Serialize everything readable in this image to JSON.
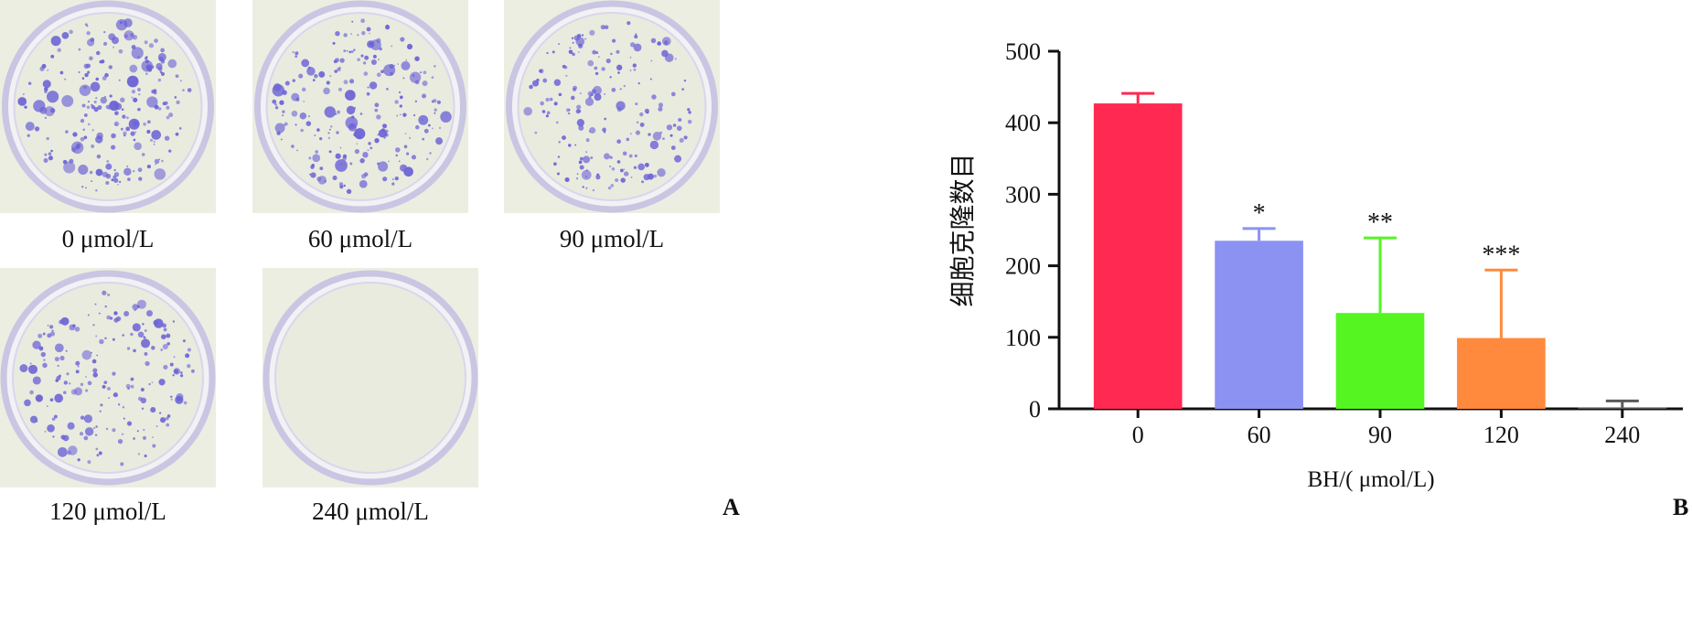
{
  "panel_a": {
    "letter": "A",
    "plates": [
      {
        "label": "0 μmol/L",
        "colony_density": "high"
      },
      {
        "label": "60 μmol/L",
        "colony_density": "high"
      },
      {
        "label": "90 μmol/L",
        "colony_density": "medium"
      },
      {
        "label": "120 μmol/L",
        "colony_density": "medium"
      },
      {
        "label": "240 μmol/L",
        "colony_density": "none"
      }
    ]
  },
  "panel_b": {
    "letter": "B"
  },
  "colors": {
    "colony": "#6b62d6",
    "plate_bg": "#e9ebdf",
    "plate_rim": "#c9c6e3"
  },
  "chart_data": {
    "type": "bar",
    "title": "",
    "xlabel": "BH/( μmol/L)",
    "ylabel": "细胞克隆数目",
    "ylim": [
      0,
      500
    ],
    "yticks": [
      0,
      100,
      200,
      300,
      400,
      500
    ],
    "categories": [
      "0",
      "60",
      "90",
      "120",
      "240"
    ],
    "values": [
      427,
      235,
      134,
      99,
      2
    ],
    "error": [
      14,
      17,
      105,
      95,
      9
    ],
    "colors": [
      "#ff2951",
      "#8c92f2",
      "#55f522",
      "#ff8a3d",
      "#5a5a5a"
    ],
    "significance": [
      "",
      "*",
      "**",
      "***",
      ""
    ]
  }
}
